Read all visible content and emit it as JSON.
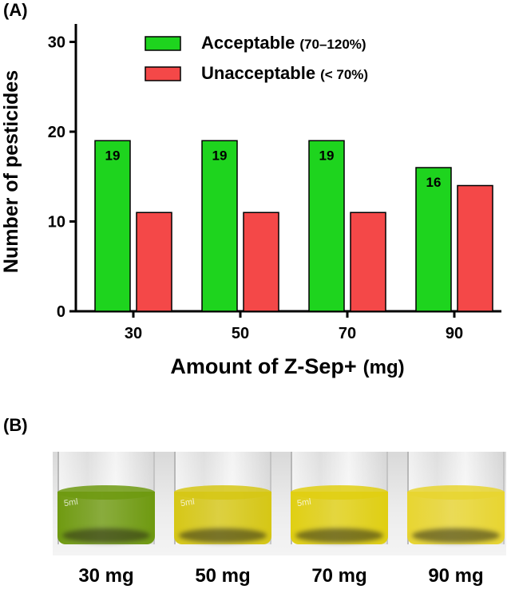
{
  "panel_a_label": "(A)",
  "panel_b_label": "(B)",
  "chart_data": {
    "type": "bar",
    "categories": [
      "30",
      "50",
      "70",
      "90"
    ],
    "series": [
      {
        "name": "Acceptable",
        "range": "(70–120%)",
        "color": "#1ed41e",
        "values": [
          19,
          19,
          19,
          16
        ],
        "data_labels": [
          "19",
          "19",
          "19",
          "16"
        ]
      },
      {
        "name": "Unacceptable",
        "range": "(< 70%)",
        "color": "#f44848",
        "values": [
          11,
          11,
          11,
          14
        ]
      }
    ],
    "xlabel": "Amount of Z-Sep+",
    "xlabel_unit": "(mg)",
    "ylabel": "Number of pesticides",
    "ylim": [
      0,
      32
    ],
    "yticks": [
      "0",
      "10",
      "20",
      "30"
    ],
    "ytick_values": [
      0,
      10,
      20,
      30
    ],
    "legend_position": "top-center"
  },
  "photo": {
    "vials": [
      {
        "label": "30 mg",
        "color": "#6f9a10",
        "marking": "5ml"
      },
      {
        "label": "50 mg",
        "color": "#d6c715",
        "marking": "5ml"
      },
      {
        "label": "70 mg",
        "color": "#e0cf12",
        "marking": "5ml"
      },
      {
        "label": "90 mg",
        "color": "#e8d530",
        "marking": ""
      }
    ]
  }
}
